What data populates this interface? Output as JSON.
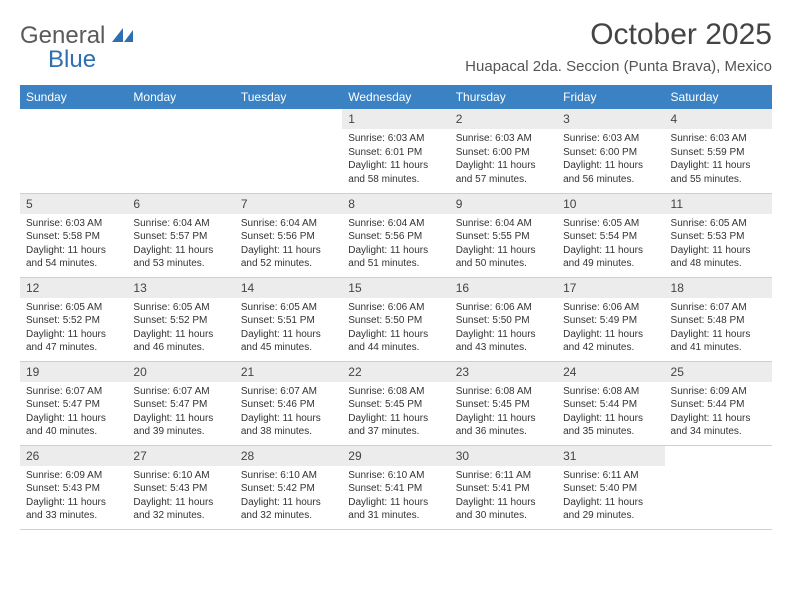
{
  "logo": {
    "text1": "General",
    "text2": "Blue"
  },
  "title": "October 2025",
  "location": "Huapacal 2da. Seccion (Punta Brava), Mexico",
  "colors": {
    "header_bg": "#3a82c4",
    "header_fg": "#ffffff",
    "daybar_bg": "#ececec",
    "border": "#cfcfcf",
    "logo_gray": "#5a5a5a",
    "logo_blue": "#2f6fb0"
  },
  "weekdays": [
    "Sunday",
    "Monday",
    "Tuesday",
    "Wednesday",
    "Thursday",
    "Friday",
    "Saturday"
  ],
  "first_weekday_index": 3,
  "days": [
    {
      "n": 1,
      "sunrise": "6:03 AM",
      "sunset": "6:01 PM",
      "daylight": "11 hours and 58 minutes."
    },
    {
      "n": 2,
      "sunrise": "6:03 AM",
      "sunset": "6:00 PM",
      "daylight": "11 hours and 57 minutes."
    },
    {
      "n": 3,
      "sunrise": "6:03 AM",
      "sunset": "6:00 PM",
      "daylight": "11 hours and 56 minutes."
    },
    {
      "n": 4,
      "sunrise": "6:03 AM",
      "sunset": "5:59 PM",
      "daylight": "11 hours and 55 minutes."
    },
    {
      "n": 5,
      "sunrise": "6:03 AM",
      "sunset": "5:58 PM",
      "daylight": "11 hours and 54 minutes."
    },
    {
      "n": 6,
      "sunrise": "6:04 AM",
      "sunset": "5:57 PM",
      "daylight": "11 hours and 53 minutes."
    },
    {
      "n": 7,
      "sunrise": "6:04 AM",
      "sunset": "5:56 PM",
      "daylight": "11 hours and 52 minutes."
    },
    {
      "n": 8,
      "sunrise": "6:04 AM",
      "sunset": "5:56 PM",
      "daylight": "11 hours and 51 minutes."
    },
    {
      "n": 9,
      "sunrise": "6:04 AM",
      "sunset": "5:55 PM",
      "daylight": "11 hours and 50 minutes."
    },
    {
      "n": 10,
      "sunrise": "6:05 AM",
      "sunset": "5:54 PM",
      "daylight": "11 hours and 49 minutes."
    },
    {
      "n": 11,
      "sunrise": "6:05 AM",
      "sunset": "5:53 PM",
      "daylight": "11 hours and 48 minutes."
    },
    {
      "n": 12,
      "sunrise": "6:05 AM",
      "sunset": "5:52 PM",
      "daylight": "11 hours and 47 minutes."
    },
    {
      "n": 13,
      "sunrise": "6:05 AM",
      "sunset": "5:52 PM",
      "daylight": "11 hours and 46 minutes."
    },
    {
      "n": 14,
      "sunrise": "6:05 AM",
      "sunset": "5:51 PM",
      "daylight": "11 hours and 45 minutes."
    },
    {
      "n": 15,
      "sunrise": "6:06 AM",
      "sunset": "5:50 PM",
      "daylight": "11 hours and 44 minutes."
    },
    {
      "n": 16,
      "sunrise": "6:06 AM",
      "sunset": "5:50 PM",
      "daylight": "11 hours and 43 minutes."
    },
    {
      "n": 17,
      "sunrise": "6:06 AM",
      "sunset": "5:49 PM",
      "daylight": "11 hours and 42 minutes."
    },
    {
      "n": 18,
      "sunrise": "6:07 AM",
      "sunset": "5:48 PM",
      "daylight": "11 hours and 41 minutes."
    },
    {
      "n": 19,
      "sunrise": "6:07 AM",
      "sunset": "5:47 PM",
      "daylight": "11 hours and 40 minutes."
    },
    {
      "n": 20,
      "sunrise": "6:07 AM",
      "sunset": "5:47 PM",
      "daylight": "11 hours and 39 minutes."
    },
    {
      "n": 21,
      "sunrise": "6:07 AM",
      "sunset": "5:46 PM",
      "daylight": "11 hours and 38 minutes."
    },
    {
      "n": 22,
      "sunrise": "6:08 AM",
      "sunset": "5:45 PM",
      "daylight": "11 hours and 37 minutes."
    },
    {
      "n": 23,
      "sunrise": "6:08 AM",
      "sunset": "5:45 PM",
      "daylight": "11 hours and 36 minutes."
    },
    {
      "n": 24,
      "sunrise": "6:08 AM",
      "sunset": "5:44 PM",
      "daylight": "11 hours and 35 minutes."
    },
    {
      "n": 25,
      "sunrise": "6:09 AM",
      "sunset": "5:44 PM",
      "daylight": "11 hours and 34 minutes."
    },
    {
      "n": 26,
      "sunrise": "6:09 AM",
      "sunset": "5:43 PM",
      "daylight": "11 hours and 33 minutes."
    },
    {
      "n": 27,
      "sunrise": "6:10 AM",
      "sunset": "5:43 PM",
      "daylight": "11 hours and 32 minutes."
    },
    {
      "n": 28,
      "sunrise": "6:10 AM",
      "sunset": "5:42 PM",
      "daylight": "11 hours and 32 minutes."
    },
    {
      "n": 29,
      "sunrise": "6:10 AM",
      "sunset": "5:41 PM",
      "daylight": "11 hours and 31 minutes."
    },
    {
      "n": 30,
      "sunrise": "6:11 AM",
      "sunset": "5:41 PM",
      "daylight": "11 hours and 30 minutes."
    },
    {
      "n": 31,
      "sunrise": "6:11 AM",
      "sunset": "5:40 PM",
      "daylight": "11 hours and 29 minutes."
    }
  ],
  "labels": {
    "sunrise": "Sunrise:",
    "sunset": "Sunset:",
    "daylight": "Daylight:"
  }
}
